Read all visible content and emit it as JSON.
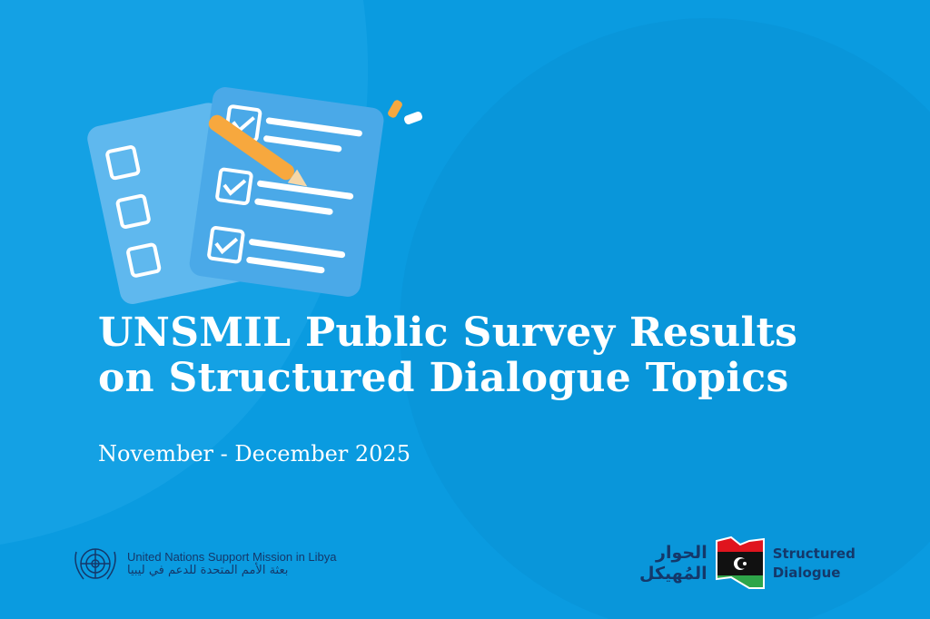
{
  "title_line1": "UNSMIL Public Survey Results",
  "title_line2": "on Structured Dialogue Topics",
  "subtitle": "November - December 2025",
  "un_logo": {
    "name_en": "United Nations Support Mission in Libya",
    "name_ar": "بعثة الأمم المتحدة للدعم في ليبيا"
  },
  "sd_logo": {
    "ar_line1": "الحوار",
    "ar_line2": "المُهيكل",
    "en_line1": "Structured",
    "en_line2": "Dialogue"
  },
  "colors": {
    "background": "#0a9be0",
    "text": "#ffffff",
    "logo_text": "#14386a"
  }
}
